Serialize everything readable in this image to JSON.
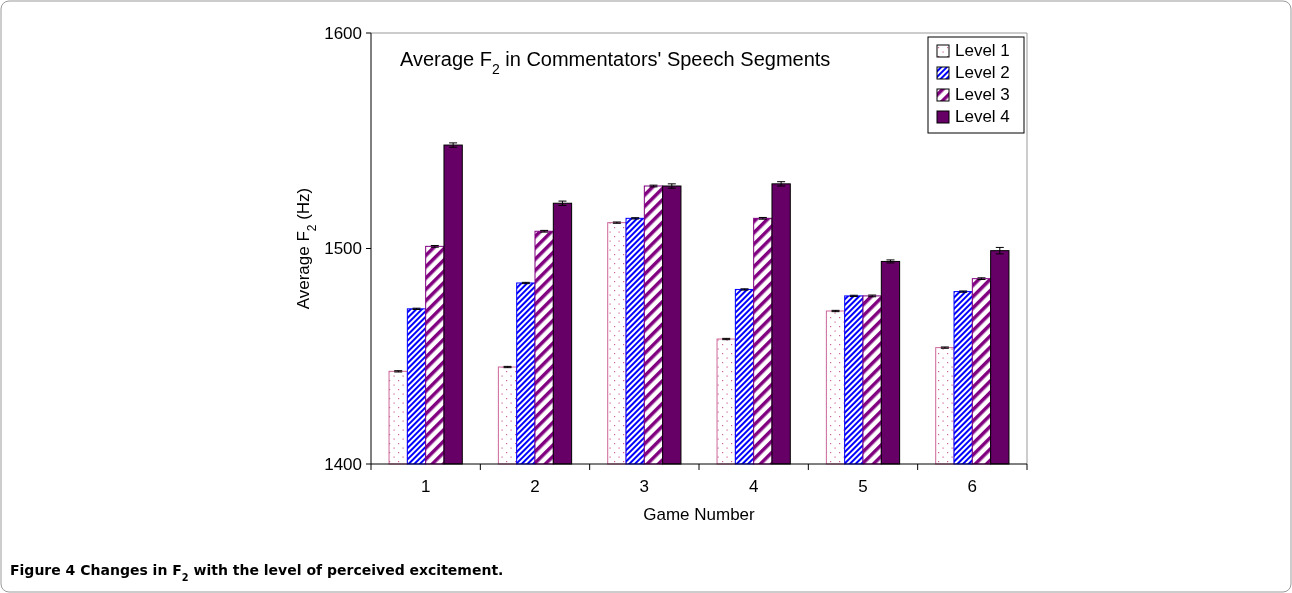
{
  "chart_data": {
    "type": "bar",
    "title": "Average F$_{2}$ in Commentators' Speech Segments",
    "xlabel": "Game Number",
    "ylabel": "Average F$_{2}$ (Hz)",
    "annotations": [
      "Figure 4 Changes in F$_{2}$ with the level of perceived excitement."
    ],
    "categories": [
      "1",
      "2",
      "3",
      "4",
      "5",
      "6"
    ],
    "ylim": [
      1400,
      1600
    ],
    "yticks": [
      1400,
      1500,
      1600
    ],
    "grid": false,
    "legend": "top right",
    "series": [
      {
        "name": "Level 1",
        "color": "#cc6699",
        "values": [
          1443,
          1445,
          1512,
          1458,
          1471,
          1454
        ],
        "errors": [
          0.3,
          0.3,
          0.3,
          0.3,
          0.3,
          0.3
        ]
      },
      {
        "name": "Level 2",
        "color": "#0000ff",
        "values": [
          1472,
          1484,
          1514,
          1481,
          1478,
          1480
        ],
        "errors": [
          0.3,
          0.3,
          0.3,
          0.3,
          0.3,
          0.3
        ]
      },
      {
        "name": "Level 3",
        "color": "#800080",
        "values": [
          1501,
          1508,
          1529,
          1514,
          1478,
          1486
        ],
        "errors": [
          0.4,
          0.4,
          0.4,
          0.4,
          0.4,
          0.4
        ]
      },
      {
        "name": "Level 4",
        "color": "#660066",
        "values": [
          1548,
          1521,
          1529,
          1530,
          1494,
          1499
        ],
        "errors": [
          1,
          1,
          1,
          1,
          0.7,
          1.5
        ]
      }
    ]
  }
}
